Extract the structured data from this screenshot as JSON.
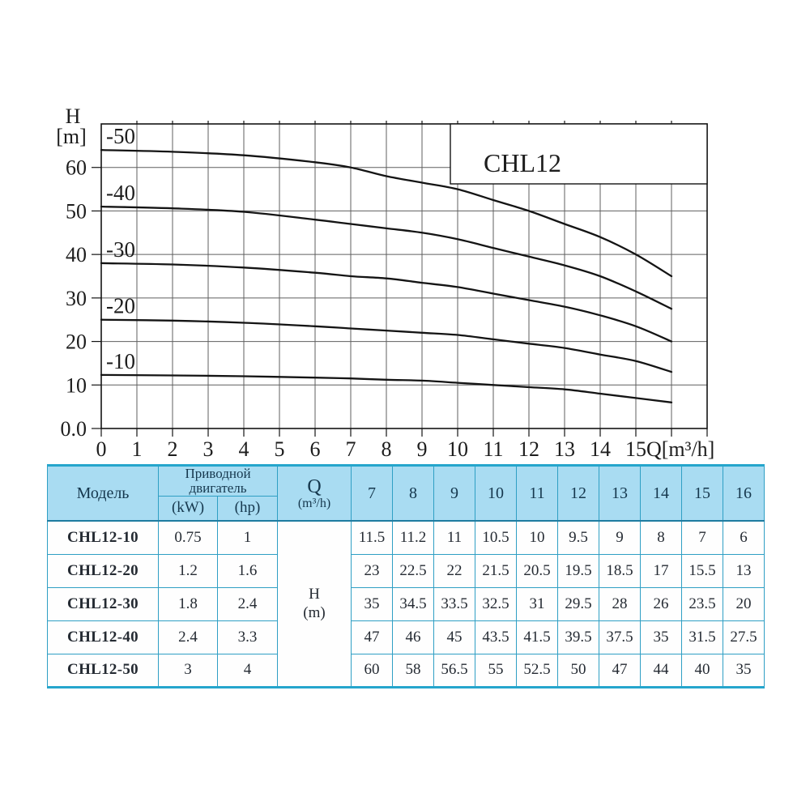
{
  "chart_data": {
    "type": "line",
    "title": "CHL12",
    "ylabel": [
      "H",
      "[m]"
    ],
    "xlabel": "Q[m³/h]",
    "xlim": [
      0,
      17
    ],
    "ylim": [
      0,
      70
    ],
    "grid": true,
    "legend_position": "inline-labels-at-curve-start",
    "x_ticks": [
      "0",
      "1",
      "2",
      "3",
      "4",
      "5",
      "6",
      "7",
      "8",
      "9",
      "10",
      "11",
      "12",
      "13",
      "14",
      "15"
    ],
    "y_ticks": [
      "0.0",
      "10",
      "20",
      "30",
      "40",
      "50",
      "60"
    ],
    "x": [
      0,
      2,
      4,
      6,
      7,
      8,
      9,
      10,
      11,
      12,
      13,
      14,
      15,
      16
    ],
    "series": [
      {
        "name": "-50",
        "values": [
          64,
          63.6,
          62.8,
          61.2,
          60,
          58,
          56.5,
          55,
          52.5,
          50,
          47,
          44,
          40,
          35
        ]
      },
      {
        "name": "-40",
        "values": [
          51,
          50.6,
          49.8,
          48,
          47,
          46,
          45,
          43.5,
          41.5,
          39.5,
          37.5,
          35,
          31.5,
          27.5
        ]
      },
      {
        "name": "-30",
        "values": [
          38,
          37.7,
          37,
          35.8,
          35,
          34.5,
          33.5,
          32.5,
          31,
          29.5,
          28,
          26,
          23.5,
          20
        ]
      },
      {
        "name": "-20",
        "values": [
          25,
          24.8,
          24.3,
          23.5,
          23,
          22.5,
          22,
          21.5,
          20.5,
          19.5,
          18.5,
          17,
          15.5,
          13
        ]
      },
      {
        "name": "-10",
        "values": [
          12.3,
          12.2,
          12,
          11.7,
          11.5,
          11.2,
          11,
          10.5,
          10,
          9.5,
          9,
          8,
          7,
          6
        ]
      }
    ]
  },
  "table": {
    "header": {
      "model": "Модель",
      "drive_motor": "Приводной двигатель",
      "kw": "(kW)",
      "hp": "(hp)",
      "q_line1": "Q",
      "q_line2": "(m³/h)",
      "flow_columns": [
        "7",
        "8",
        "9",
        "10",
        "11",
        "12",
        "13",
        "14",
        "15",
        "16"
      ]
    },
    "h_unit": [
      "H",
      "(m)"
    ],
    "rows": [
      {
        "model": "CHL12-10",
        "kw": "0.75",
        "hp": "1",
        "values": [
          "11.5",
          "11.2",
          "11",
          "10.5",
          "10",
          "9.5",
          "9",
          "8",
          "7",
          "6"
        ]
      },
      {
        "model": "CHL12-20",
        "kw": "1.2",
        "hp": "1.6",
        "values": [
          "23",
          "22.5",
          "22",
          "21.5",
          "20.5",
          "19.5",
          "18.5",
          "17",
          "15.5",
          "13"
        ]
      },
      {
        "model": "CHL12-30",
        "kw": "1.8",
        "hp": "2.4",
        "values": [
          "35",
          "34.5",
          "33.5",
          "32.5",
          "31",
          "29.5",
          "28",
          "26",
          "23.5",
          "20"
        ]
      },
      {
        "model": "CHL12-40",
        "kw": "2.4",
        "hp": "3.3",
        "values": [
          "47",
          "46",
          "45",
          "43.5",
          "41.5",
          "39.5",
          "37.5",
          "35",
          "31.5",
          "27.5"
        ]
      },
      {
        "model": "CHL12-50",
        "kw": "3",
        "hp": "4",
        "values": [
          "60",
          "58",
          "56.5",
          "55",
          "52.5",
          "50",
          "47",
          "44",
          "40",
          "35"
        ]
      }
    ]
  },
  "colors": {
    "table_border": "#2f9fc4",
    "table_thick_border": "#25a5cc",
    "table_header_bg": "#a9dcf2",
    "grid_line": "#5f5f5f",
    "plot_border": "#141414",
    "curve": "#141414",
    "text": "#1d1d1d"
  }
}
